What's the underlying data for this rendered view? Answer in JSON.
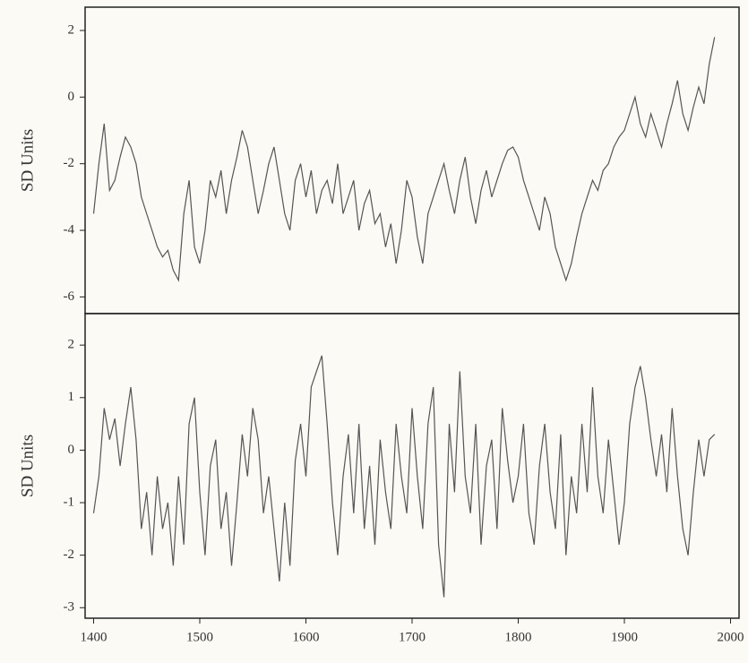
{
  "chart_data": [
    {
      "type": "line",
      "ylabel": "SD Units",
      "xlim": [
        1392,
        2008
      ],
      "ylim": [
        -6.5,
        2.7
      ],
      "yticks": [
        2,
        0,
        -2,
        -4,
        -6
      ],
      "x": [
        1400,
        1405,
        1410,
        1415,
        1420,
        1425,
        1430,
        1435,
        1440,
        1445,
        1450,
        1455,
        1460,
        1465,
        1470,
        1475,
        1480,
        1485,
        1490,
        1495,
        1500,
        1505,
        1510,
        1515,
        1520,
        1525,
        1530,
        1535,
        1540,
        1545,
        1550,
        1555,
        1560,
        1565,
        1570,
        1575,
        1580,
        1585,
        1590,
        1595,
        1600,
        1605,
        1610,
        1615,
        1620,
        1625,
        1630,
        1635,
        1640,
        1645,
        1650,
        1655,
        1660,
        1665,
        1670,
        1675,
        1680,
        1685,
        1690,
        1695,
        1700,
        1705,
        1710,
        1715,
        1720,
        1725,
        1730,
        1735,
        1740,
        1745,
        1750,
        1755,
        1760,
        1765,
        1770,
        1775,
        1780,
        1785,
        1790,
        1795,
        1800,
        1805,
        1810,
        1815,
        1820,
        1825,
        1830,
        1835,
        1840,
        1845,
        1850,
        1855,
        1860,
        1865,
        1870,
        1875,
        1880,
        1885,
        1890,
        1895,
        1900,
        1905,
        1910,
        1915,
        1920,
        1925,
        1930,
        1935,
        1940,
        1945,
        1950,
        1955,
        1960,
        1965,
        1970,
        1975,
        1980,
        1985
      ],
      "series": [
        {
          "color": "#555555",
          "values": [
            -3.5,
            -2,
            -0.8,
            -2.8,
            -2.5,
            -1.8,
            -1.2,
            -1.5,
            -2,
            -3,
            -3.5,
            -4,
            -4.5,
            -4.8,
            -4.6,
            -5.2,
            -5.5,
            -3.5,
            -2.5,
            -4.5,
            -5,
            -4,
            -2.5,
            -3,
            -2.2,
            -3.5,
            -2.5,
            -1.8,
            -1,
            -1.5,
            -2.5,
            -3.5,
            -2.8,
            -2,
            -1.5,
            -2.5,
            -3.5,
            -4,
            -2.5,
            -2,
            -3,
            -2.2,
            -3.5,
            -2.8,
            -2.5,
            -3.2,
            -2,
            -3.5,
            -3,
            -2.5,
            -4,
            -3.2,
            -2.8,
            -3.8,
            -3.5,
            -4.5,
            -3.8,
            -5,
            -4,
            -2.5,
            -3,
            -4.2,
            -5,
            -3.5,
            -3,
            -2.5,
            -2,
            -2.8,
            -3.5,
            -2.5,
            -1.8,
            -3,
            -3.8,
            -2.8,
            -2.2,
            -3,
            -2.5,
            -2,
            -1.6,
            -1.5,
            -1.8,
            -2.5,
            -3,
            -3.5,
            -4,
            -3,
            -3.5,
            -4.5,
            -5,
            -5.5,
            -5,
            -4.2,
            -3.5,
            -3,
            -2.5,
            -2.8,
            -2.2,
            -2,
            -1.5,
            -1.2,
            -1,
            -0.5,
            0,
            -0.8,
            -1.2,
            -0.5,
            -1,
            -1.5,
            -0.8,
            -0.2,
            0.5,
            -0.5,
            -1,
            -0.3,
            0.3,
            -0.2,
            1,
            1.8
          ]
        }
      ]
    },
    {
      "type": "line",
      "ylabel": "SD Units",
      "xlim": [
        1392,
        2008
      ],
      "ylim": [
        -3.2,
        2.6
      ],
      "yticks": [
        2,
        1,
        0,
        -1,
        -2,
        -3
      ],
      "xticks": [
        1400,
        1500,
        1600,
        1700,
        1800,
        1900,
        2000
      ],
      "x": [
        1400,
        1405,
        1410,
        1415,
        1420,
        1425,
        1430,
        1435,
        1440,
        1445,
        1450,
        1455,
        1460,
        1465,
        1470,
        1475,
        1480,
        1485,
        1490,
        1495,
        1500,
        1505,
        1510,
        1515,
        1520,
        1525,
        1530,
        1535,
        1540,
        1545,
        1550,
        1555,
        1560,
        1565,
        1570,
        1575,
        1580,
        1585,
        1590,
        1595,
        1600,
        1605,
        1610,
        1615,
        1620,
        1625,
        1630,
        1635,
        1640,
        1645,
        1650,
        1655,
        1660,
        1665,
        1670,
        1675,
        1680,
        1685,
        1690,
        1695,
        1700,
        1705,
        1710,
        1715,
        1720,
        1725,
        1730,
        1735,
        1740,
        1745,
        1750,
        1755,
        1760,
        1765,
        1770,
        1775,
        1780,
        1785,
        1790,
        1795,
        1800,
        1805,
        1810,
        1815,
        1820,
        1825,
        1830,
        1835,
        1840,
        1845,
        1850,
        1855,
        1860,
        1865,
        1870,
        1875,
        1880,
        1885,
        1890,
        1895,
        1900,
        1905,
        1910,
        1915,
        1920,
        1925,
        1930,
        1935,
        1940,
        1945,
        1950,
        1955,
        1960,
        1965,
        1970,
        1975,
        1980,
        1985
      ],
      "series": [
        {
          "color": "#555555",
          "values": [
            -1.2,
            -0.5,
            0.8,
            0.2,
            0.6,
            -0.3,
            0.5,
            1.2,
            0.2,
            -1.5,
            -0.8,
            -2,
            -0.5,
            -1.5,
            -1,
            -2.2,
            -0.5,
            -1.8,
            0.5,
            1,
            -0.8,
            -2,
            -0.3,
            0.2,
            -1.5,
            -0.8,
            -2.2,
            -1,
            0.3,
            -0.5,
            0.8,
            0.2,
            -1.2,
            -0.5,
            -1.5,
            -2.5,
            -1,
            -2.2,
            -0.2,
            0.5,
            -0.5,
            1.2,
            1.5,
            1.8,
            0.5,
            -1,
            -2,
            -0.5,
            0.3,
            -1.2,
            0.5,
            -1.5,
            -0.3,
            -1.8,
            0.2,
            -0.8,
            -1.5,
            0.5,
            -0.5,
            -1.2,
            0.8,
            -0.5,
            -1.5,
            0.5,
            1.2,
            -1.8,
            -2.8,
            0.5,
            -0.8,
            1.5,
            -0.5,
            -1.2,
            0.5,
            -1.8,
            -0.3,
            0.2,
            -1.5,
            0.8,
            -0.2,
            -1,
            -0.5,
            0.5,
            -1.2,
            -1.8,
            -0.3,
            0.5,
            -0.8,
            -1.5,
            0.3,
            -2,
            -0.5,
            -1.2,
            0.5,
            -0.8,
            1.2,
            -0.5,
            -1.2,
            0.2,
            -0.8,
            -1.8,
            -1,
            0.5,
            1.2,
            1.6,
            1,
            0.2,
            -0.5,
            0.3,
            -0.8,
            0.8,
            -0.5,
            -1.5,
            -2,
            -0.8,
            0.2,
            -0.5,
            0.2,
            0.3
          ]
        }
      ]
    }
  ]
}
